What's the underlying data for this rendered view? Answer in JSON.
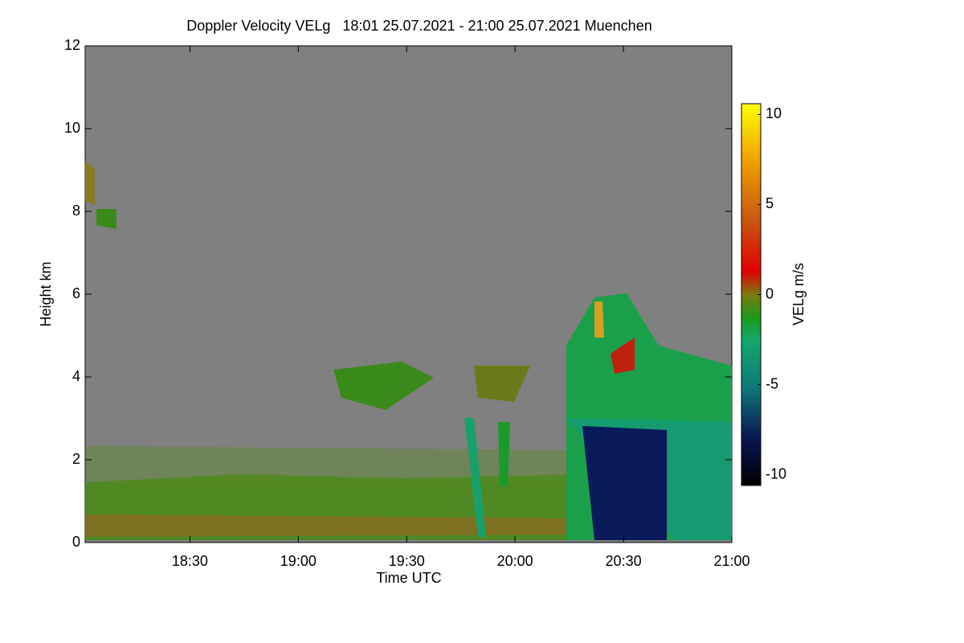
{
  "chart_data": {
    "type": "heatmap",
    "title": "Doppler Velocity VELg   18:01 25.07.2021 - 21:00 25.07.2021 Muenchen",
    "x_label": "Time UTC",
    "y_label": "Height km",
    "colorbar_label": "VELg m/s",
    "xlim": [
      1081,
      1260
    ],
    "xticks": [
      {
        "value": 1110,
        "label": "18:30"
      },
      {
        "value": 1140,
        "label": "19:00"
      },
      {
        "value": 1170,
        "label": "19:30"
      },
      {
        "value": 1200,
        "label": "20:00"
      },
      {
        "value": 1230,
        "label": "20:30"
      },
      {
        "value": 1260,
        "label": "21:00"
      }
    ],
    "ylim": [
      0,
      12
    ],
    "yticks": [
      0,
      2,
      4,
      6,
      8,
      10,
      12
    ],
    "clim": [
      -10.6,
      10.6
    ],
    "cticks": [
      -10,
      -5,
      0,
      5,
      10
    ]
  }
}
